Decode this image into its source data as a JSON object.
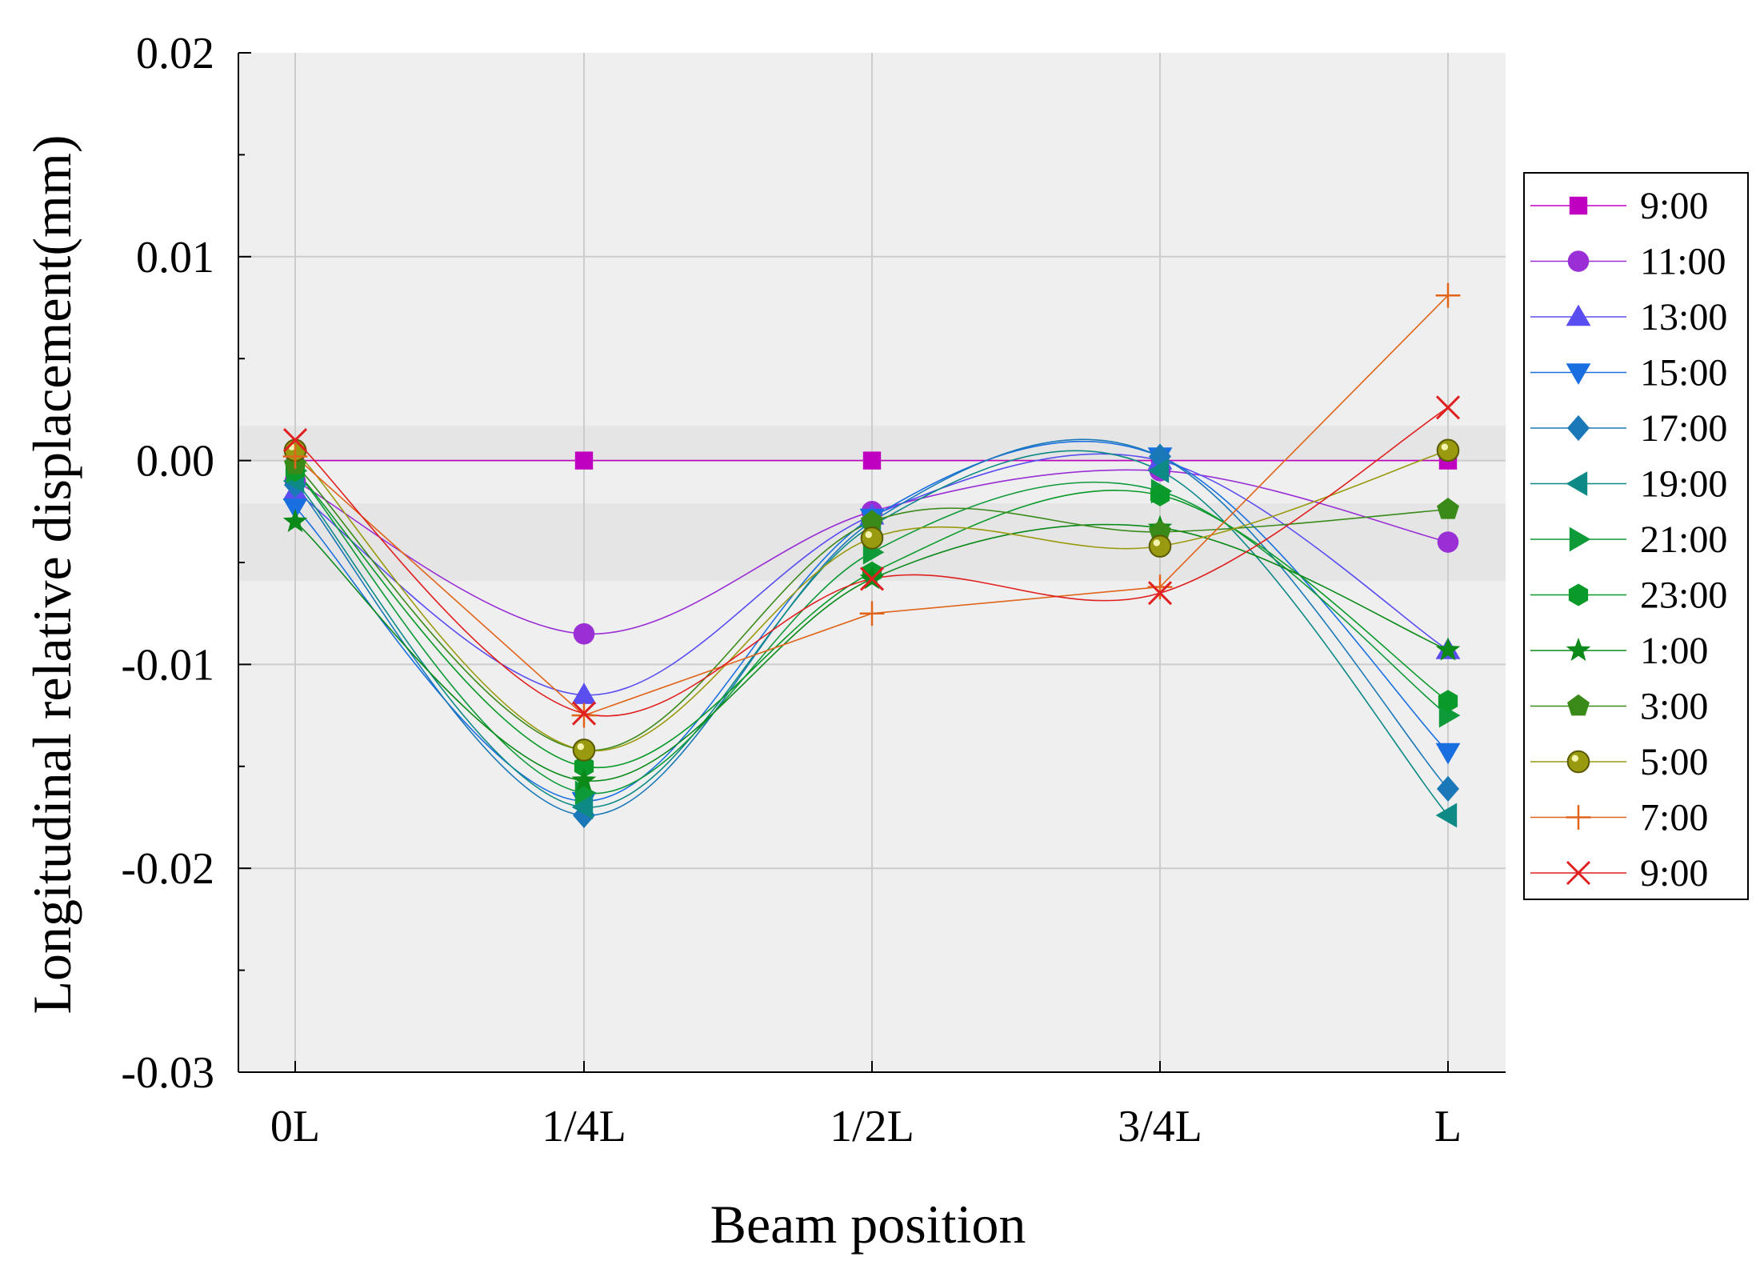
{
  "chart_data": {
    "type": "line",
    "title": "",
    "xlabel": "Beam position",
    "ylabel": "Longitudinal relative displacement(mm)",
    "categories": [
      "0L",
      "1/4L",
      "1/2L",
      "3/4L",
      "L"
    ],
    "ylim": [
      -0.03,
      0.02
    ],
    "yticks": [
      -0.03,
      -0.02,
      -0.01,
      0.0,
      0.01,
      0.02
    ],
    "ytick_labels": [
      "-0.03",
      "-0.02",
      "-0.01",
      "0.00",
      "0.01",
      "0.02"
    ],
    "grid": true,
    "smooth": true,
    "legend_position": "right",
    "series": [
      {
        "name": "9:00",
        "color": "#c000c0",
        "marker": "square",
        "values": [
          0.0,
          0.0,
          0.0,
          0.0,
          0.0
        ]
      },
      {
        "name": "11:00",
        "color": "#9a2fd6",
        "marker": "circle",
        "values": [
          -0.001,
          -0.0085,
          -0.0025,
          -0.0005,
          -0.004
        ]
      },
      {
        "name": "13:00",
        "color": "#5a4ef0",
        "marker": "triangle-up",
        "values": [
          -0.0015,
          -0.0115,
          -0.0027,
          0.0,
          -0.0093
        ]
      },
      {
        "name": "15:00",
        "color": "#1a6fe0",
        "marker": "triangle-down",
        "values": [
          -0.0023,
          -0.0167,
          -0.0028,
          0.0002,
          -0.0143
        ]
      },
      {
        "name": "17:00",
        "color": "#1a78b8",
        "marker": "diamond",
        "values": [
          -0.0012,
          -0.0174,
          -0.003,
          0.0002,
          -0.0161
        ]
      },
      {
        "name": "19:00",
        "color": "#0e8a86",
        "marker": "triangle-left",
        "values": [
          -0.001,
          -0.017,
          -0.0032,
          -0.0005,
          -0.0174
        ]
      },
      {
        "name": "21:00",
        "color": "#0f9a3a",
        "marker": "triangle-right",
        "values": [
          -0.0005,
          -0.0163,
          -0.0045,
          -0.0015,
          -0.0125
        ]
      },
      {
        "name": "23:00",
        "color": "#0a9a2a",
        "marker": "hexagon",
        "values": [
          -0.0005,
          -0.015,
          -0.0055,
          -0.0017,
          -0.0118
        ]
      },
      {
        "name": "1:00",
        "color": "#0b8a1a",
        "marker": "star",
        "values": [
          -0.003,
          -0.0157,
          -0.0058,
          -0.0033,
          -0.0093
        ]
      },
      {
        "name": "3:00",
        "color": "#3a8a1a",
        "marker": "pentagon",
        "values": [
          -0.0002,
          -0.0142,
          -0.003,
          -0.0035,
          -0.0024
        ]
      },
      {
        "name": "5:00",
        "color": "#9a9a10",
        "marker": "sphere",
        "values": [
          0.0005,
          -0.0142,
          -0.0038,
          -0.0042,
          0.0005
        ]
      },
      {
        "name": "7:00",
        "color": "#e0641a",
        "marker": "plus",
        "values": [
          0.0002,
          -0.0125,
          -0.0075,
          -0.0062,
          0.0081
        ]
      },
      {
        "name": "9:00",
        "color": "#e02020",
        "marker": "x",
        "values": [
          0.001,
          -0.0124,
          -0.0058,
          -0.0065,
          0.0026
        ]
      }
    ]
  },
  "colors": {
    "plot_background": "#efefef",
    "band_background": "#e5e5e5",
    "grid": "#cccccc",
    "axis": "#000000"
  }
}
